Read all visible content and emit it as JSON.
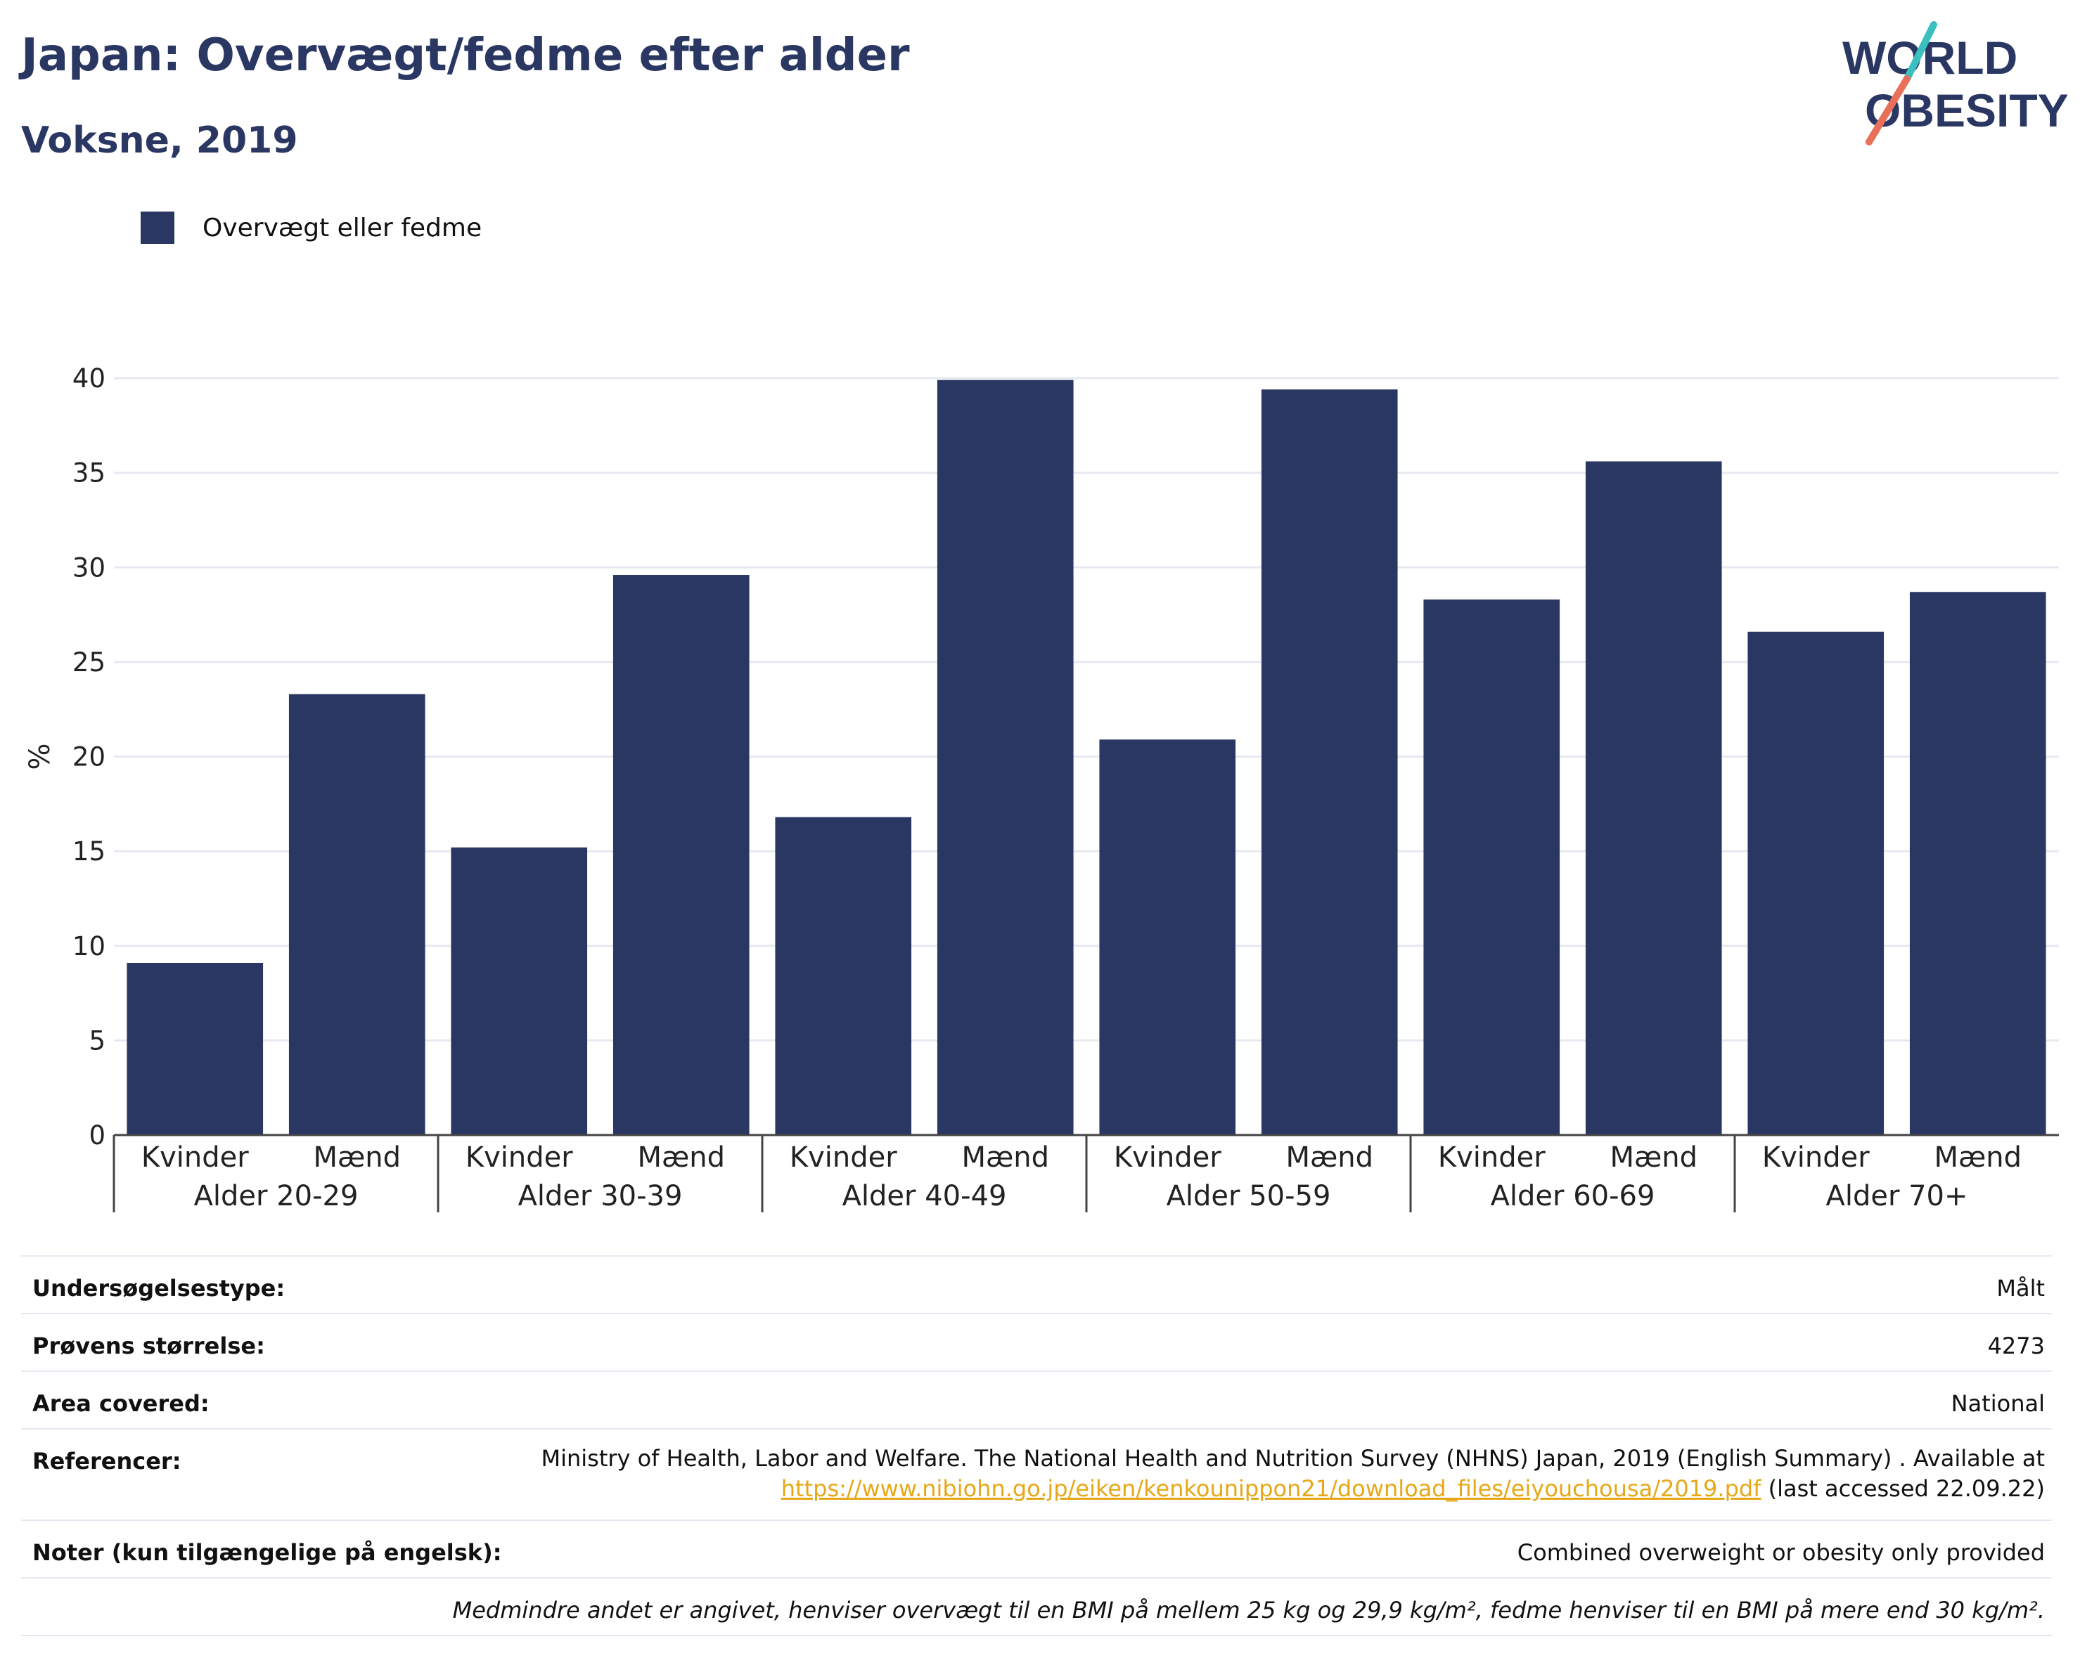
{
  "header": {
    "title": "Japan: Overvægt/fedme efter alder",
    "subtitle": "Voksne, 2019"
  },
  "logo": {
    "line1": "WORLD",
    "line2": "OBESITY",
    "text_color": "#2a3763",
    "accent_teal": "#3bbfbf",
    "accent_coral": "#e8705a"
  },
  "legend": {
    "label": "Overvægt eller fedme",
    "color": "#2a3763"
  },
  "chart_data": {
    "type": "bar",
    "ylabel": "%",
    "ylim": [
      0,
      40
    ],
    "yticks": [
      0,
      5,
      10,
      15,
      20,
      25,
      30,
      35,
      40
    ],
    "grid": true,
    "bar_color": "#2a3763",
    "groups": [
      "Alder 20-29",
      "Alder 30-39",
      "Alder 40-49",
      "Alder 50-59",
      "Alder 60-69",
      "Alder 70+"
    ],
    "categories": [
      "Kvinder",
      "Mænd",
      "Kvinder",
      "Mænd",
      "Kvinder",
      "Mænd",
      "Kvinder",
      "Mænd",
      "Kvinder",
      "Mænd",
      "Kvinder",
      "Mænd"
    ],
    "series": [
      {
        "values": [
          9.1,
          23.3,
          15.2,
          29.6,
          16.8,
          39.9,
          20.9,
          39.4,
          28.3,
          35.6,
          26.6,
          28.7
        ]
      }
    ]
  },
  "info": {
    "survey_type": {
      "label": "Undersøgelsestype:",
      "value": "Målt"
    },
    "sample_size": {
      "label": "Prøvens størrelse:",
      "value": "4273"
    },
    "area": {
      "label": "Area covered:",
      "value": "National"
    },
    "references": {
      "label": "Referencer:",
      "text": "Ministry of Health, Labor and Welfare. The National Health and Nutrition Survey (NHNS) Japan, 2019 (English Summary) . Available at",
      "link": "https://www.nibiohn.go.jp/eiken/kenkounippon21/download_files/eiyouchousa/2019.pdf",
      "suffix": " (last accessed 22.09.22)"
    },
    "notes": {
      "label": "Noter (kun tilgængelige på engelsk):",
      "value": "Combined overweight or obesity only provided"
    },
    "footnote": "Medmindre andet er angivet, henviser overvægt til en BMI på mellem 25 kg og 29,9 kg/m², fedme henviser til en BMI på mere end 30 kg/m²."
  }
}
